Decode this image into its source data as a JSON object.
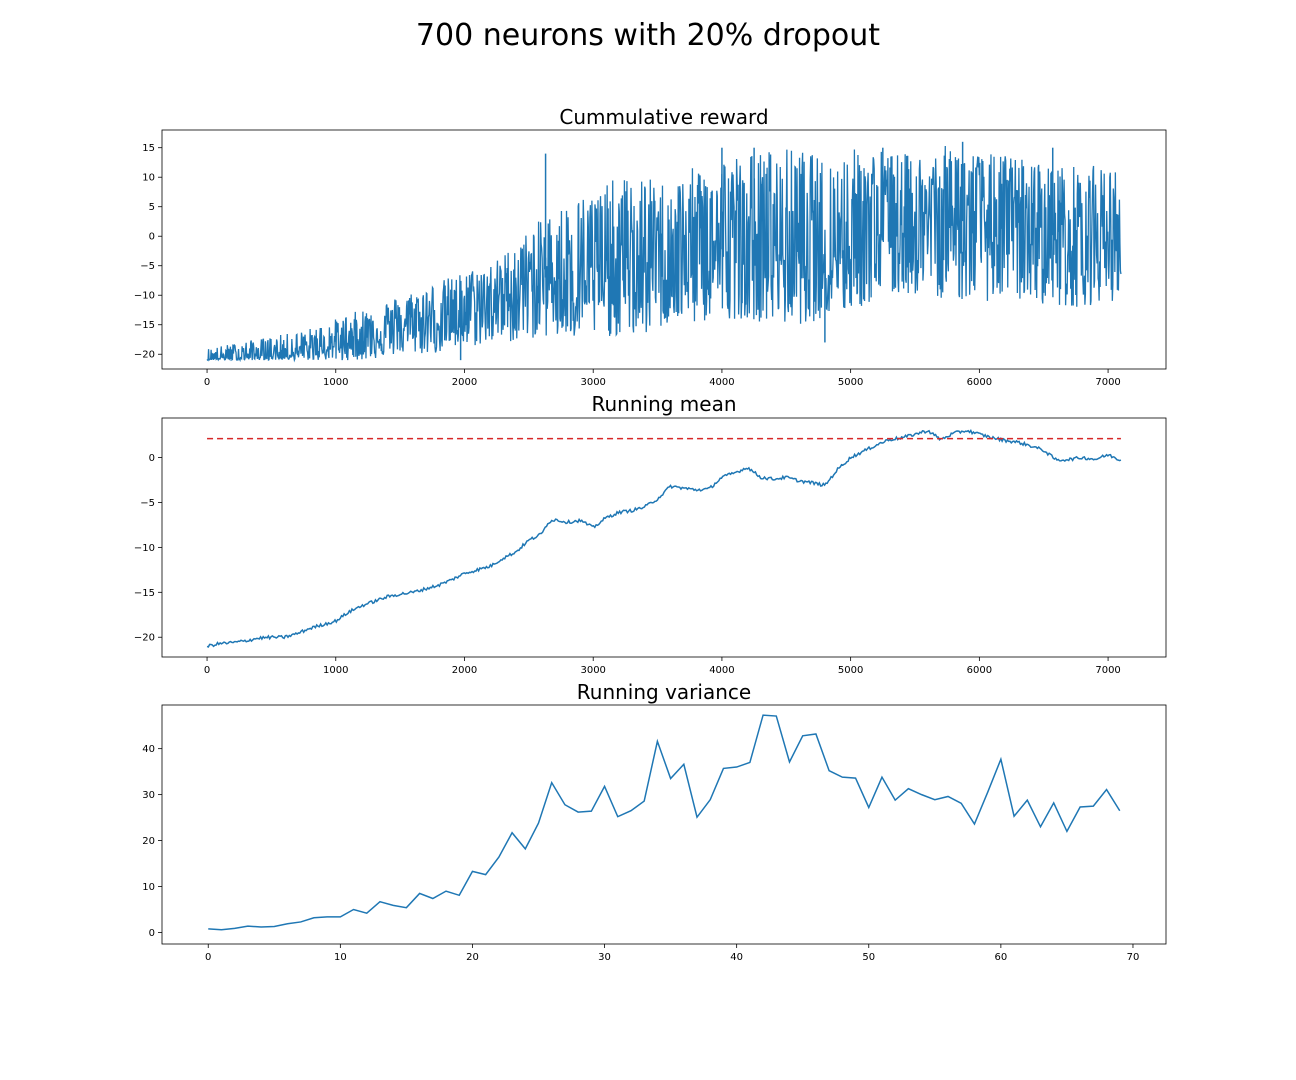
{
  "figure": {
    "suptitle": "700 neurons with 20% dropout"
  },
  "colors": {
    "series": "#1f77b4",
    "threshold": "#d62728",
    "axes": "#000000",
    "background": "#ffffff"
  },
  "chart_data": [
    {
      "type": "line",
      "title": "Cummulative reward",
      "xlabel": "",
      "ylabel": "",
      "xlim": [
        -350,
        7450
      ],
      "ylim": [
        -22.5,
        18
      ],
      "xticks": [
        0,
        1000,
        2000,
        3000,
        4000,
        5000,
        6000,
        7000
      ],
      "xtick_labels": [
        "0",
        "1000",
        "2000",
        "3000",
        "4000",
        "5000",
        "6000",
        "7000"
      ],
      "yticks": [
        15,
        10,
        5,
        0,
        -5,
        -10,
        -15,
        -20
      ],
      "ytick_labels": [
        "15",
        "10",
        "5",
        "0",
        "−5",
        "−10",
        "−15",
        "−20"
      ],
      "grid": false,
      "series": [
        {
          "style": "noisy-band",
          "x": [
            0,
            250,
            500,
            750,
            1000,
            1250,
            1500,
            1750,
            2000,
            2250,
            2400,
            2600,
            2800,
            3000,
            3200,
            3400,
            3600,
            3800,
            4000,
            4200,
            4400,
            4600,
            4800,
            5000,
            5200,
            5400,
            5600,
            5800,
            6000,
            6200,
            6400,
            6600,
            6800,
            7000,
            7100
          ],
          "low": [
            -21,
            -21,
            -21,
            -21,
            -21,
            -21,
            -20,
            -20,
            -19,
            -18,
            -18,
            -17,
            -18,
            -17,
            -17,
            -17,
            -15,
            -15,
            -14,
            -14,
            -15,
            -15,
            -14,
            -13,
            -11,
            -10,
            -10,
            -11,
            -11,
            -11,
            -11,
            -12,
            -12,
            -11,
            -11
          ],
          "high": [
            -19,
            -18,
            -17,
            -16,
            -14,
            -12,
            -10,
            -8,
            -6,
            -4,
            -1,
            3,
            6,
            8,
            10,
            10,
            9,
            12,
            14,
            14,
            15,
            15,
            13,
            15,
            15,
            14,
            14,
            16,
            14,
            14,
            13,
            12,
            12,
            12,
            11
          ],
          "center": [
            -20.8,
            -20.5,
            -20.2,
            -19.7,
            -18.6,
            -16.8,
            -15.5,
            -14.5,
            -12.9,
            -11.0,
            -9.0,
            -7.0,
            -7.0,
            -7.5,
            -6.0,
            -5.5,
            -3.4,
            -3.6,
            -2.2,
            -1.8,
            -2.4,
            -2.6,
            -3.0,
            0.0,
            1.5,
            2.2,
            2.8,
            2.7,
            2.3,
            1.8,
            1.2,
            0.0,
            0.0,
            0.0,
            -0.5
          ],
          "spikes": [
            [
              2630,
              14
            ],
            [
              4000,
              15
            ],
            [
              4250,
              15
            ],
            [
              5250,
              15
            ],
            [
              5870,
              16
            ],
            [
              6570,
              15
            ],
            [
              1050,
              -21
            ],
            [
              1970,
              -21
            ],
            [
              4800,
              -18
            ]
          ]
        }
      ]
    },
    {
      "type": "line",
      "title": "Running mean",
      "xlabel": "",
      "ylabel": "",
      "xlim": [
        -350,
        7450
      ],
      "ylim": [
        -22.2,
        4.4
      ],
      "xticks": [
        0,
        1000,
        2000,
        3000,
        4000,
        5000,
        6000,
        7000
      ],
      "xtick_labels": [
        "0",
        "1000",
        "2000",
        "3000",
        "4000",
        "5000",
        "6000",
        "7000"
      ],
      "yticks": [
        0,
        -5,
        -10,
        -15,
        -20
      ],
      "ytick_labels": [
        "0",
        "−5",
        "−10",
        "−15",
        "−20"
      ],
      "grid": false,
      "series": [
        {
          "style": "line",
          "x": [
            0,
            100,
            200,
            300,
            400,
            500,
            600,
            700,
            800,
            900,
            1000,
            1100,
            1200,
            1300,
            1400,
            1500,
            1600,
            1700,
            1800,
            1900,
            2000,
            2100,
            2200,
            2300,
            2400,
            2500,
            2600,
            2650,
            2700,
            2800,
            2900,
            3000,
            3100,
            3200,
            3300,
            3400,
            3500,
            3600,
            3700,
            3800,
            3900,
            4000,
            4100,
            4200,
            4300,
            4400,
            4500,
            4600,
            4700,
            4800,
            4900,
            5000,
            5100,
            5200,
            5300,
            5400,
            5500,
            5600,
            5700,
            5800,
            5900,
            6000,
            6100,
            6200,
            6300,
            6400,
            6500,
            6600,
            6700,
            6800,
            6900,
            7000,
            7100
          ],
          "y": [
            -21.0,
            -20.7,
            -20.6,
            -20.4,
            -20.1,
            -20.0,
            -20.0,
            -19.6,
            -19.0,
            -18.6,
            -18.2,
            -17.2,
            -16.5,
            -16.0,
            -15.5,
            -15.2,
            -15.0,
            -14.6,
            -14.2,
            -13.6,
            -12.9,
            -12.5,
            -12.1,
            -11.2,
            -10.5,
            -9.2,
            -8.5,
            -7.2,
            -6.9,
            -7.2,
            -7.0,
            -7.8,
            -6.7,
            -6.1,
            -5.9,
            -5.5,
            -4.6,
            -3.2,
            -3.4,
            -3.6,
            -3.5,
            -2.2,
            -1.7,
            -1.1,
            -2.2,
            -2.4,
            -2.2,
            -2.6,
            -2.8,
            -3.1,
            -1.3,
            0.0,
            0.7,
            1.4,
            2.0,
            2.2,
            2.6,
            3.0,
            2.0,
            2.7,
            3.0,
            2.6,
            2.2,
            1.9,
            1.7,
            1.3,
            0.8,
            -0.3,
            -0.2,
            0.0,
            -0.2,
            0.3,
            -0.3
          ]
        },
        {
          "style": "dashed",
          "x": [
            0,
            7100
          ],
          "y": [
            2.1,
            2.1
          ]
        }
      ]
    },
    {
      "type": "line",
      "title": "Running variance",
      "xlabel": "",
      "ylabel": "",
      "xlim": [
        -3.5,
        72.5
      ],
      "ylim": [
        -2.5,
        49.5
      ],
      "xticks": [
        0,
        10,
        20,
        30,
        40,
        50,
        60,
        70
      ],
      "xtick_labels": [
        "0",
        "10",
        "20",
        "30",
        "40",
        "50",
        "60",
        "70"
      ],
      "yticks": [
        40,
        30,
        20,
        10,
        0
      ],
      "ytick_labels": [
        "40",
        "30",
        "20",
        "10",
        "0"
      ],
      "grid": false,
      "series": [
        {
          "style": "line",
          "x": [
            0,
            1,
            2,
            3,
            4,
            5,
            6,
            7,
            8,
            9,
            10,
            11,
            12,
            13,
            14,
            15,
            16,
            17,
            18,
            19,
            20,
            21,
            22,
            23,
            24,
            25,
            26,
            27,
            28,
            29,
            30,
            31,
            32,
            33,
            34,
            35,
            36,
            37,
            38,
            39,
            40,
            41,
            42,
            43,
            44,
            45,
            46,
            47,
            48,
            49,
            50,
            51,
            52,
            53,
            54,
            55,
            56,
            57,
            58,
            59,
            60,
            61,
            62,
            63,
            64,
            65,
            66,
            67,
            68,
            69
          ],
          "y": [
            0.8,
            0.6,
            0.9,
            1.4,
            1.2,
            1.3,
            1.9,
            2.3,
            3.2,
            3.4,
            3.4,
            5.0,
            4.2,
            6.7,
            5.9,
            5.4,
            8.5,
            7.4,
            9.0,
            8.1,
            13.3,
            12.6,
            16.4,
            21.7,
            18.2,
            23.8,
            32.6,
            27.8,
            26.2,
            26.4,
            31.8,
            25.2,
            26.5,
            28.6,
            41.6,
            33.5,
            36.6,
            25.1,
            28.9,
            35.7,
            36.0,
            37.0,
            47.3,
            47.1,
            37.1,
            42.8,
            43.2,
            35.2,
            33.8,
            33.6,
            27.2,
            33.8,
            28.8,
            31.3,
            30.0,
            28.9,
            29.6,
            28.1,
            23.6,
            30.5,
            37.7,
            25.3,
            28.8,
            23.0,
            28.2,
            22.0,
            27.3,
            27.5,
            31.1,
            26.5
          ]
        }
      ]
    }
  ]
}
